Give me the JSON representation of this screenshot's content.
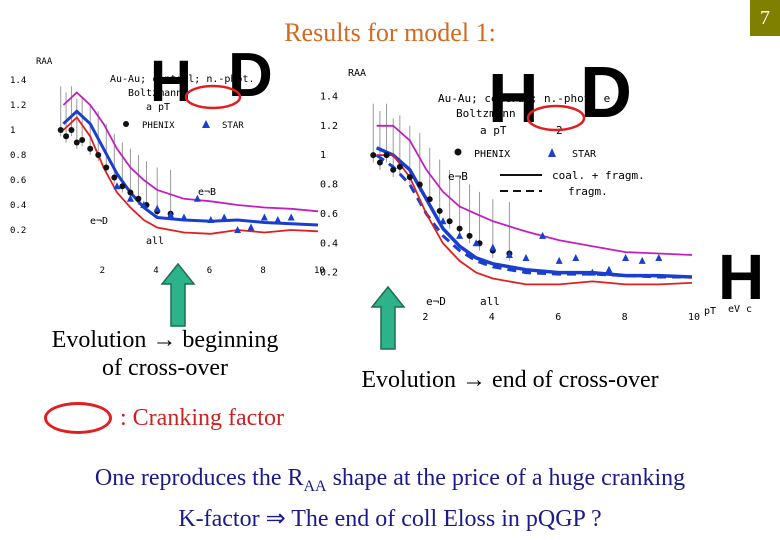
{
  "slide": {
    "title": "Results for model 1:",
    "page_number": "7"
  },
  "captions": {
    "left_line1": "Evolution → beginning",
    "left_line2": "of cross-over",
    "right": "Evolution → end of cross-over",
    "cranking": ": Cranking factor"
  },
  "conclusion": {
    "line1_pre": "One reproduces the R",
    "line1_sub": "AA",
    "line1_post": " shape at the price of a huge cranking",
    "line2": "K-factor ⇒ The end of coll Eloss in pQGP ?"
  },
  "letters": {
    "left_h": "H",
    "left_d": "D",
    "right_h": "H",
    "right_d": "D",
    "far_h": "H"
  },
  "colors": {
    "title": "#d2691e",
    "blue_curve": "#1a3fd0",
    "red_curve": "#e02020",
    "magenta_curve": "#c020c0",
    "crank_oval": "#e02020",
    "arrow_fill": "#2db38a",
    "conclusion_text": "#1a1a8c"
  },
  "chart_data": [
    {
      "type": "line",
      "ylabel": "RAA",
      "xlim": [
        0,
        10
      ],
      "ylim": [
        0,
        1.6
      ],
      "xticks": [
        "2",
        "4",
        "6",
        "8",
        "10"
      ],
      "yticks": [
        "0.2",
        "0.4",
        "0.6",
        "0.8",
        "1",
        "1.2",
        "1.4"
      ],
      "legend_text": {
        "system": "Au-Au; central; n.-phot. e",
        "model": "Boltzmann",
        "pt": "a pT",
        "phenix": "PHENIX",
        "star": "STAR"
      },
      "annotations": [
        "e¬B",
        "e¬D",
        "all"
      ],
      "series": [
        {
          "name": "all",
          "x": [
            0.5,
            1,
            1.5,
            2,
            2.5,
            3,
            3.5,
            4,
            5,
            6,
            7,
            8,
            9,
            10
          ],
          "values": [
            1.05,
            1.15,
            1.05,
            0.85,
            0.65,
            0.5,
            0.38,
            0.3,
            0.28,
            0.27,
            0.28,
            0.26,
            0.25,
            0.24
          ]
        },
        {
          "name": "e¬B",
          "x": [
            0.5,
            1,
            1.5,
            2,
            2.5,
            3,
            3.5,
            4,
            5,
            6,
            7,
            8,
            9,
            10
          ],
          "values": [
            1.2,
            1.3,
            1.2,
            1.05,
            0.85,
            0.7,
            0.6,
            0.52,
            0.45,
            0.43,
            0.4,
            0.38,
            0.37,
            0.35
          ]
        },
        {
          "name": "e¬D",
          "x": [
            0.5,
            1,
            1.5,
            2,
            2.5,
            3,
            3.5,
            4,
            5,
            6,
            7,
            8,
            9,
            10
          ],
          "values": [
            1.0,
            1.1,
            0.95,
            0.7,
            0.5,
            0.38,
            0.28,
            0.22,
            0.18,
            0.17,
            0.2,
            0.18,
            0.2,
            0.19
          ]
        }
      ],
      "points_phenix": {
        "x": [
          0.4,
          0.6,
          0.8,
          1.0,
          1.2,
          1.5,
          1.8,
          2.1,
          2.4,
          2.7,
          3.0,
          3.3,
          3.6,
          4.0,
          4.5
        ],
        "values": [
          1.0,
          0.95,
          1.0,
          0.9,
          0.92,
          0.85,
          0.8,
          0.7,
          0.62,
          0.55,
          0.5,
          0.45,
          0.4,
          0.35,
          0.33
        ]
      },
      "points_star": {
        "x": [
          2.5,
          3.0,
          3.5,
          4.0,
          4.5,
          5.0,
          5.5,
          6.0,
          6.5,
          7.0,
          7.5,
          8.0,
          8.5,
          9.0
        ],
        "values": [
          0.55,
          0.45,
          0.4,
          0.37,
          0.32,
          0.3,
          0.45,
          0.28,
          0.3,
          0.2,
          0.22,
          0.3,
          0.28,
          0.3
        ]
      }
    },
    {
      "type": "line",
      "ylabel": "RAA",
      "xlabel": "pT",
      "xunit": "eV c",
      "xlim": [
        0,
        10
      ],
      "ylim": [
        0,
        1.6
      ],
      "xticks": [
        "2",
        "4",
        "6",
        "8",
        "10"
      ],
      "yticks": [
        "0.2",
        "0.4",
        "0.6",
        "0.8",
        "1",
        "1.2",
        "1.4"
      ],
      "legend_text": {
        "system": "Au-Au; central; n.-phot. e",
        "model": "Boltzmann",
        "pt": "a pT",
        "phenix": "PHENIX",
        "star": "STAR",
        "solid": "coal. + fragm.",
        "dashed": "fragm.",
        "crank_value": "2"
      },
      "annotations": [
        "e¬B",
        "e¬D",
        "all"
      ],
      "series": [
        {
          "name": "coal. + fragm.",
          "x": [
            0.5,
            1,
            1.5,
            2,
            2.5,
            3,
            3.5,
            4,
            5,
            6,
            7,
            8,
            9,
            10
          ],
          "values": [
            1.05,
            1.0,
            0.9,
            0.7,
            0.5,
            0.38,
            0.3,
            0.26,
            0.22,
            0.2,
            0.2,
            0.18,
            0.18,
            0.17
          ]
        },
        {
          "name": "fragm.",
          "x": [
            0.5,
            1,
            1.5,
            2,
            2.5,
            3,
            3.5,
            4,
            5,
            6,
            7,
            8,
            9,
            10
          ],
          "values": [
            1.0,
            0.92,
            0.8,
            0.6,
            0.45,
            0.35,
            0.28,
            0.24,
            0.2,
            0.19,
            0.19,
            0.18,
            0.17,
            0.17
          ]
        },
        {
          "name": "e¬B",
          "x": [
            0.5,
            1,
            1.5,
            2,
            2.5,
            3,
            3.5,
            4,
            5,
            6,
            7,
            8,
            9,
            10
          ],
          "values": [
            1.2,
            1.2,
            1.1,
            0.9,
            0.75,
            0.65,
            0.6,
            0.55,
            0.48,
            0.42,
            0.38,
            0.34,
            0.33,
            0.32
          ]
        },
        {
          "name": "e¬D",
          "x": [
            0.5,
            1,
            1.5,
            2,
            2.5,
            3,
            3.5,
            4,
            5,
            6,
            7,
            8,
            9,
            10
          ],
          "values": [
            1.0,
            1.0,
            0.85,
            0.6,
            0.4,
            0.28,
            0.2,
            0.16,
            0.12,
            0.12,
            0.14,
            0.12,
            0.12,
            0.13
          ]
        }
      ],
      "points_phenix": {
        "x": [
          0.4,
          0.6,
          0.8,
          1.0,
          1.2,
          1.5,
          1.8,
          2.1,
          2.4,
          2.7,
          3.0,
          3.3,
          3.6,
          4.0,
          4.5
        ],
        "values": [
          1.0,
          0.95,
          1.0,
          0.9,
          0.92,
          0.85,
          0.8,
          0.7,
          0.62,
          0.55,
          0.5,
          0.45,
          0.4,
          0.35,
          0.33
        ]
      },
      "points_star": {
        "x": [
          2.5,
          3.0,
          3.5,
          4.0,
          4.5,
          5.0,
          5.5,
          6.0,
          6.5,
          7.0,
          7.5,
          8.0,
          8.5,
          9.0
        ],
        "values": [
          0.55,
          0.45,
          0.4,
          0.37,
          0.32,
          0.3,
          0.45,
          0.28,
          0.3,
          0.2,
          0.22,
          0.3,
          0.28,
          0.3
        ]
      }
    }
  ]
}
